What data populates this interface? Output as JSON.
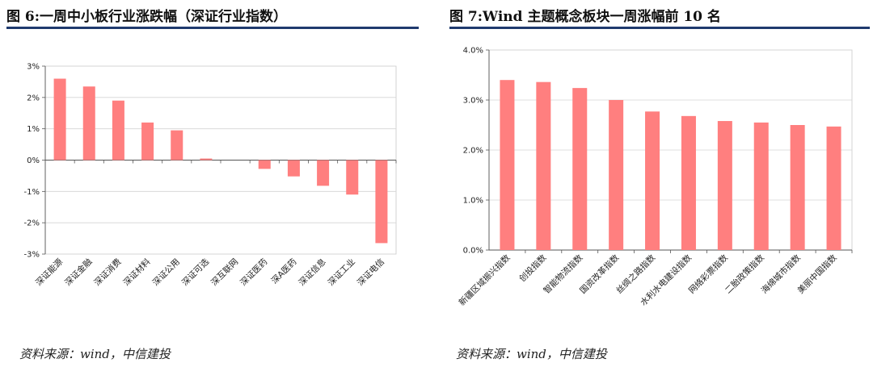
{
  "charts": [
    {
      "title": "图 6:一周中小板行业涨跌幅（深证行业指数）",
      "source": "资料来源：wind，中信建投",
      "chart_data": {
        "type": "bar",
        "categories": [
          "深证能源",
          "深证金融",
          "深证消费",
          "深证材料",
          "深证公用",
          "深证可选",
          "深互联网",
          "深证医药",
          "深A医药",
          "深证信息",
          "深证工业",
          "深证电信"
        ],
        "values": [
          2.6,
          2.35,
          1.9,
          1.2,
          0.95,
          0.05,
          0.0,
          -0.28,
          -0.52,
          -0.82,
          -1.1,
          -2.65
        ],
        "ylim": [
          -3,
          3
        ],
        "yticks": [
          -3,
          -2,
          -1,
          0,
          1,
          2,
          3
        ],
        "ytick_format": "percent_int",
        "color": "#ff7f7f",
        "grid": true,
        "legend": "none"
      }
    },
    {
      "title": "图 7:Wind 主题概念板块一周涨幅前 10 名",
      "source": "资料来源：wind，中信建投",
      "chart_data": {
        "type": "bar",
        "categories": [
          "新疆区域振兴指数",
          "创投指数",
          "智能物流指数",
          "国资改革指数",
          "丝绸之路指数",
          "水利水电建设指数",
          "网络彩票指数",
          "二胎政策指数",
          "海绵城市指数",
          "美丽中国指数"
        ],
        "values": [
          3.4,
          3.36,
          3.24,
          3.0,
          2.77,
          2.68,
          2.58,
          2.55,
          2.5,
          2.47
        ],
        "ylim": [
          0,
          4
        ],
        "yticks": [
          0,
          1,
          2,
          3,
          4
        ],
        "ytick_format": "percent_1dp",
        "color": "#ff7f7f",
        "grid": true,
        "legend": "none"
      }
    }
  ]
}
